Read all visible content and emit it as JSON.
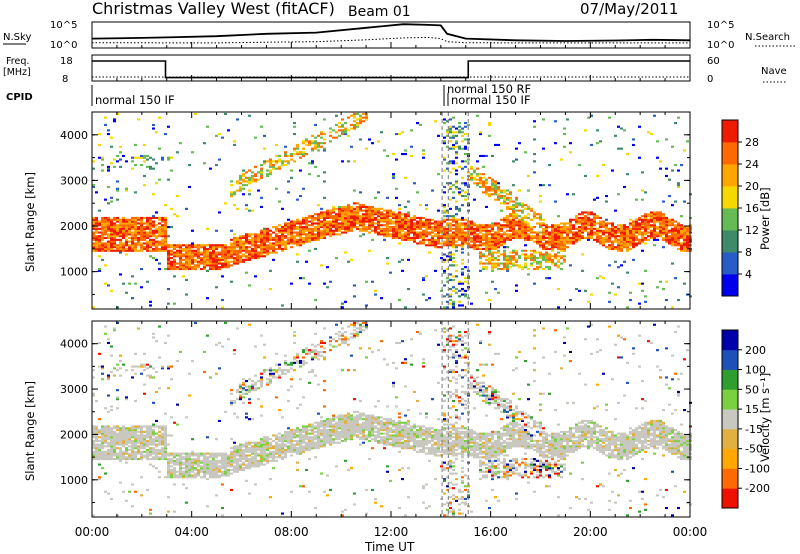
{
  "header": {
    "title": "Christmas Valley West (fitACF)",
    "beam": "Beam 01",
    "date": "07/May/2011"
  },
  "colors": {
    "power_scale": [
      "#0000ee",
      "#2a5cc8",
      "#3f8a6a",
      "#66bb55",
      "#f5d800",
      "#ffa500",
      "#ff6a00",
      "#ee1b00"
    ],
    "velocity_scale": [
      "#ee1100",
      "#ff6a00",
      "#ffa800",
      "#e0b040",
      "#c8c8c0",
      "#7ad040",
      "#2f9e2f",
      "#1e50b8",
      "#0000aa"
    ]
  },
  "chart_data": [
    {
      "type": "line",
      "panel": "noise",
      "title": "",
      "left_label": "N.Sky",
      "right_label": "N.Search",
      "left_ticks": [
        "10^5",
        "10^0"
      ],
      "right_ticks": [
        "10^5",
        "10^0"
      ],
      "x": [
        "00:00",
        "02:00",
        "03:00",
        "05:00",
        "07:00",
        "09:00",
        "11:00",
        "12:30",
        "13:30",
        "14:00",
        "14:15",
        "15:00",
        "17:00",
        "19:00",
        "21:00",
        "22:30",
        "24:00"
      ],
      "series": [
        {
          "name": "N.Sky",
          "values": [
            0.35,
            0.38,
            0.4,
            0.45,
            0.55,
            0.6,
            0.8,
            0.95,
            0.92,
            0.9,
            0.55,
            0.35,
            0.28,
            0.25,
            0.27,
            0.3,
            0.28
          ]
        },
        {
          "name": "N.Search",
          "values": [
            0.18,
            0.18,
            0.17,
            0.17,
            0.2,
            0.22,
            0.3,
            0.38,
            0.4,
            0.35,
            0.22,
            0.18,
            0.17,
            0.17,
            0.17,
            0.17,
            0.17
          ]
        }
      ]
    },
    {
      "type": "line",
      "panel": "frequency",
      "left_label_lines": [
        "Freq.",
        "[MHz]"
      ],
      "left_ticks": [
        "18",
        "8"
      ],
      "right_label": "Nave",
      "right_ticks": [
        "60",
        "0"
      ],
      "cpid_label": "CPID",
      "cpid_annotations": [
        "normal 150 IF",
        "normal 150 RF",
        "normal 150 IF"
      ],
      "x_hours": [
        0,
        2.95,
        14.05,
        15.1,
        24
      ],
      "series": [
        {
          "name": "Freq.",
          "values": [
            18,
            8.8,
            8.8,
            18,
            18
          ]
        }
      ]
    },
    {
      "type": "heatmap",
      "panel": "power",
      "ylabel": "Slant Range [km]",
      "y_ticks": [
        "1000",
        "2000",
        "3000",
        "4000"
      ],
      "ylim": [
        180,
        4500
      ],
      "x_ticks": [
        "00:00",
        "04:00",
        "08:00",
        "12:00",
        "16:00",
        "20:00",
        "00:00"
      ],
      "colorbar_label": "Power [dB]",
      "colorbar_ticks": [
        "4",
        "8",
        "12",
        "16",
        "20",
        "24",
        "28"
      ],
      "regions": [
        {
          "t0": 0,
          "t1": 2.9,
          "r0": 1300,
          "r1": 2150,
          "level": "high"
        },
        {
          "t0": 3.0,
          "t1": 5.5,
          "r0": 1100,
          "r1": 1500,
          "level": "high"
        },
        {
          "t0": 5.5,
          "t1": 10.0,
          "r0": 1300,
          "r1": 2200,
          "level": "high"
        },
        {
          "t0": 9.5,
          "t1": 13.5,
          "r0": 1900,
          "r1": 2600,
          "level": "low"
        },
        {
          "t0": 5.5,
          "t1": 10.5,
          "r0": 2800,
          "r1": 4400,
          "level": "mid"
        },
        {
          "t0": 15.0,
          "t1": 24.0,
          "r0": 1500,
          "r1": 2200,
          "level": "high"
        },
        {
          "t0": 15.5,
          "t1": 19.0,
          "r0": 1000,
          "r1": 1500,
          "level": "mid"
        },
        {
          "t0": 15.0,
          "t1": 17.5,
          "r0": 2400,
          "r1": 3500,
          "level": "high"
        }
      ]
    },
    {
      "type": "heatmap",
      "panel": "velocity",
      "ylabel": "Slant Range [km]",
      "y_ticks": [
        "1000",
        "2000",
        "3000",
        "4000"
      ],
      "ylim": [
        180,
        4500
      ],
      "x_ticks": [
        "00:00",
        "04:00",
        "08:00",
        "12:00",
        "16:00",
        "20:00",
        "00:00"
      ],
      "xlabel": "Time UT",
      "colorbar_label": "Velocity [m s⁻¹]",
      "colorbar_ticks": [
        "200",
        "100",
        "50",
        "15",
        "-15",
        "-50",
        "-100",
        "-200"
      ]
    }
  ]
}
